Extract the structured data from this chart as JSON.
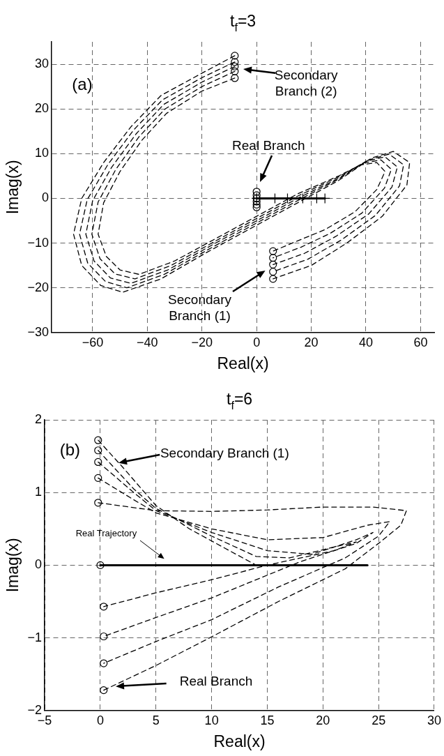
{
  "chart_data": [
    {
      "type": "line",
      "title": "t$_{f}$=3",
      "xlabel": "Real(x)",
      "ylabel": "Imag(x)",
      "xlim": [
        -75,
        65
      ],
      "xticks": [
        -60,
        -40,
        -20,
        0,
        20,
        40,
        60
      ],
      "ylim": [
        -30,
        35
      ],
      "yticks": [
        -30,
        -20,
        -10,
        0,
        10,
        20,
        30
      ],
      "grid": true,
      "legend": false,
      "series": [
        {
          "type": "line",
          "color": "#000000",
          "marker": "none",
          "line_style": "dashed",
          "x": [
            -8,
            -20,
            -35,
            -46,
            -56,
            -64,
            -67,
            -64,
            -57,
            -49,
            -35,
            -18,
            0,
            15,
            30,
            42,
            50,
            56,
            55,
            46,
            33,
            20,
            6
          ],
          "values": [
            31.9,
            28,
            23,
            16,
            8,
            0,
            -8,
            -15,
            -19.5,
            -21,
            -18,
            -12,
            -6,
            -1,
            4,
            9,
            10.5,
            8,
            3,
            -4,
            -10,
            -15,
            -18
          ]
        },
        {
          "type": "line",
          "color": "#000000",
          "marker": "none",
          "line_style": "dashed",
          "x": [
            -8,
            -20,
            -34.5,
            -45,
            -54.5,
            -62,
            -64.8,
            -61.8,
            -55.3,
            -47.5,
            -33.8,
            -17.3,
            0,
            15,
            30,
            41,
            48.5,
            53.8,
            52.3,
            43.5,
            31,
            18.8,
            6
          ],
          "values": [
            30.5,
            27,
            22,
            15.3,
            7.5,
            -0.3,
            -8,
            -14.5,
            -18.6,
            -20,
            -17,
            -11.3,
            -5.5,
            -0.5,
            4.3,
            8.6,
            9.9,
            7.5,
            2.8,
            -3.8,
            -9.3,
            -13.6,
            -16.4
          ]
        },
        {
          "type": "line",
          "color": "#000000",
          "marker": "none",
          "line_style": "dashed",
          "x": [
            -8,
            -20,
            -34,
            -44,
            -53,
            -60,
            -62.5,
            -59.5,
            -53.5,
            -46,
            -32.5,
            -16.5,
            0,
            15,
            30,
            40,
            47,
            51.5,
            49.5,
            41,
            29,
            17.5,
            6
          ],
          "values": [
            29.5,
            26,
            21,
            14.5,
            7,
            -0.5,
            -8,
            -14,
            -17.8,
            -19,
            -16,
            -10.5,
            -5,
            0,
            4.5,
            8.3,
            9.3,
            7,
            2.5,
            -3.5,
            -8.5,
            -12.3,
            -14.8
          ]
        },
        {
          "type": "line",
          "color": "#000000",
          "marker": "none",
          "line_style": "dashed",
          "x": [
            -8,
            -20,
            -33.5,
            -43,
            -51.5,
            -58,
            -60.3,
            -57.3,
            -51.8,
            -44.5,
            -31.3,
            -15.8,
            0,
            15,
            30,
            39,
            45.5,
            49.3,
            46.8,
            38.5,
            27,
            16.3,
            6
          ],
          "values": [
            28.4,
            25,
            20,
            13.8,
            6.5,
            -0.8,
            -8,
            -13.5,
            -16.9,
            -18,
            -15,
            -9.8,
            -4.5,
            0.5,
            4.8,
            7.9,
            8.6,
            6.5,
            2.3,
            -3.3,
            -7.8,
            -10.9,
            -13.3
          ]
        },
        {
          "type": "line",
          "color": "#000000",
          "marker": "none",
          "line_style": "dashed",
          "x": [
            -8,
            -20,
            -33,
            -42,
            -50,
            -56,
            -58,
            -55,
            -50,
            -43,
            -30,
            -15,
            0,
            15,
            30,
            38,
            44,
            47,
            44,
            36,
            25,
            15,
            6
          ],
          "values": [
            26.9,
            24,
            19,
            13,
            6,
            -1,
            -8,
            -13,
            -16,
            -17,
            -14,
            -9,
            -4,
            1,
            5,
            7.5,
            8,
            6,
            2,
            -3,
            -7,
            -9.5,
            -11.8
          ]
        },
        {
          "type": "scatter",
          "color": "#000000",
          "marker": "circle",
          "x": [
            -8,
            -8,
            -8,
            -8,
            -8
          ],
          "values": [
            31.9,
            30.5,
            29.5,
            28.4,
            26.9
          ]
        },
        {
          "type": "scatter",
          "color": "#000000",
          "marker": "circle",
          "x": [
            6,
            6,
            6,
            6,
            6
          ],
          "values": [
            -11.8,
            -13.3,
            -14.8,
            -16.4,
            -18
          ]
        },
        {
          "type": "scatter",
          "color": "#000000",
          "marker": "circle",
          "x": [
            0,
            0,
            0,
            0,
            0,
            0
          ],
          "values": [
            1.5,
            0.7,
            0,
            -0.7,
            -1.4,
            -2
          ]
        },
        {
          "type": "line",
          "color": "#000000",
          "marker": "cross",
          "line_style": "solid",
          "x": [
            0,
            6.7,
            11.3,
            16.9,
            22,
            25
          ],
          "values": [
            0,
            0,
            0,
            0,
            0,
            0
          ]
        }
      ],
      "annotations": [
        "(a)",
        "Secondary Branch (2)",
        "Real Branch",
        "Secondary Branch (1)"
      ]
    },
    {
      "type": "line",
      "title": "t$_{f}$=6",
      "xlabel": "Real(x)",
      "ylabel": "Imag(x)",
      "xlim": [
        -5,
        30
      ],
      "xticks": [
        -5,
        0,
        5,
        10,
        15,
        20,
        25,
        30
      ],
      "ylim": [
        -2,
        2
      ],
      "yticks": [
        -2,
        -1,
        0,
        1,
        2
      ],
      "grid": true,
      "legend": false,
      "series": [
        {
          "type": "line",
          "color": "#000000",
          "marker": "none",
          "line_style": "dashed",
          "x": [
            -0.2,
            5,
            10,
            15,
            20,
            24.5,
            27.5,
            27,
            25,
            22,
            16,
            10.2,
            5,
            0.3
          ],
          "values": [
            0.86,
            0.75,
            0.74,
            0.76,
            0.8,
            0.8,
            0.75,
            0.55,
            0.3,
            -0.05,
            -0.5,
            -0.97,
            -1.38,
            -1.72
          ]
        },
        {
          "type": "line",
          "color": "#000000",
          "marker": "none",
          "line_style": "dashed",
          "x": [
            -0.2,
            3,
            5,
            10,
            15,
            20,
            24,
            26,
            25,
            22,
            16,
            10,
            5,
            0.3
          ],
          "values": [
            1.2,
            0.9,
            0.72,
            0.5,
            0.35,
            0.38,
            0.55,
            0.6,
            0.4,
            0.1,
            -0.3,
            -0.75,
            -1.05,
            -1.35
          ]
        },
        {
          "type": "line",
          "color": "#000000",
          "marker": "none",
          "line_style": "dashed",
          "x": [
            -0.2,
            3,
            5,
            10,
            15,
            19,
            23,
            24.5,
            23,
            18,
            10,
            5,
            0.3
          ],
          "values": [
            1.42,
            1.0,
            0.75,
            0.45,
            0.2,
            0.15,
            0.35,
            0.45,
            0.3,
            0.05,
            -0.45,
            -0.72,
            -0.98
          ]
        },
        {
          "type": "line",
          "color": "#000000",
          "marker": "none",
          "line_style": "dashed",
          "x": [
            -0.2,
            3,
            5,
            10,
            14,
            17,
            21,
            23,
            21,
            15,
            10,
            5,
            0.3
          ],
          "values": [
            1.58,
            1.05,
            0.78,
            0.4,
            0.12,
            0.1,
            0.25,
            0.32,
            0.2,
            0,
            -0.2,
            -0.38,
            -0.57
          ]
        },
        {
          "type": "line",
          "color": "#000000",
          "marker": "none",
          "line_style": "dashed",
          "x": [
            -0.2,
            2,
            5,
            8,
            11,
            14
          ],
          "values": [
            1.72,
            1.35,
            0.82,
            0.5,
            0.25,
            0
          ]
        },
        {
          "type": "line",
          "color": "#000000",
          "marker": "none",
          "line_style": "solid",
          "x": [
            0,
            24
          ],
          "values": [
            0,
            0
          ]
        },
        {
          "type": "scatter",
          "color": "#000000",
          "marker": "circle",
          "x": [
            -0.2,
            -0.2,
            -0.2,
            -0.2,
            -0.2,
            0,
            0.3,
            0.3,
            0.3,
            0.3
          ],
          "values": [
            1.72,
            1.58,
            1.42,
            1.2,
            0.86,
            0,
            -0.57,
            -0.98,
            -1.35,
            -1.72
          ]
        }
      ],
      "annotations": [
        "(b)",
        "Secondary Branch (1)",
        "Real Trajectory",
        "Real Branch"
      ]
    }
  ]
}
